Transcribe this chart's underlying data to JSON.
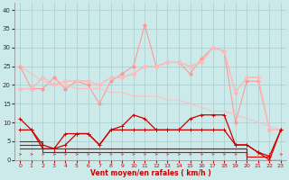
{
  "x": [
    0,
    1,
    2,
    3,
    4,
    5,
    6,
    7,
    8,
    9,
    10,
    11,
    12,
    13,
    14,
    15,
    16,
    17,
    18,
    19,
    20,
    21,
    22,
    23
  ],
  "series": [
    {
      "label": "rafales_high",
      "color": "#ff9999",
      "linewidth": 0.8,
      "marker": "D",
      "markersize": 2.0,
      "y": [
        25,
        19,
        19,
        22,
        19,
        21,
        20,
        15,
        21,
        23,
        25,
        36,
        25,
        26,
        26,
        23,
        27,
        30,
        29,
        10,
        21,
        21,
        8,
        8
      ]
    },
    {
      "label": "rafales_mid1",
      "color": "#ffaaaa",
      "linewidth": 0.8,
      "marker": "D",
      "markersize": 2.0,
      "y": [
        19,
        19,
        22,
        20,
        21,
        21,
        21,
        20,
        22,
        22,
        23,
        25,
        25,
        26,
        26,
        25,
        26,
        30,
        29,
        18,
        22,
        22,
        8,
        8
      ]
    },
    {
      "label": "rafales_mid2",
      "color": "#ffbbbb",
      "linewidth": 0.8,
      "marker": "D",
      "markersize": 2.0,
      "y": [
        19,
        19,
        22,
        20,
        21,
        21,
        21,
        20,
        22,
        22,
        23,
        25,
        25,
        26,
        26,
        25,
        26,
        30,
        29,
        18,
        22,
        22,
        8,
        8
      ]
    },
    {
      "label": "rafales_diag",
      "color": "#ffbbbb",
      "linewidth": 0.7,
      "marker": null,
      "markersize": 0,
      "y": [
        25,
        23,
        21,
        20,
        20,
        19,
        19,
        19,
        18,
        18,
        17,
        17,
        17,
        16,
        16,
        15,
        14,
        13,
        13,
        12,
        11,
        10,
        9,
        8
      ]
    },
    {
      "label": "moyen_high",
      "color": "#cc0000",
      "linewidth": 0.9,
      "marker": "+",
      "markersize": 3,
      "y": [
        11,
        8,
        3,
        3,
        4,
        7,
        7,
        4,
        8,
        9,
        12,
        11,
        8,
        8,
        8,
        11,
        12,
        12,
        12,
        4,
        4,
        2,
        1,
        8
      ]
    },
    {
      "label": "moyen_flat",
      "color": "#cc0000",
      "linewidth": 0.9,
      "marker": "+",
      "markersize": 3,
      "y": [
        8,
        8,
        4,
        3,
        7,
        7,
        7,
        4,
        8,
        8,
        8,
        8,
        8,
        8,
        8,
        8,
        8,
        8,
        8,
        4,
        4,
        2,
        0,
        8
      ]
    },
    {
      "label": "step_high",
      "color": "#dd0000",
      "linewidth": 0.8,
      "marker": null,
      "markersize": 0,
      "step": true,
      "y": [
        5,
        5,
        3,
        2,
        3,
        3,
        3,
        3,
        3,
        3,
        3,
        3,
        3,
        3,
        3,
        3,
        3,
        3,
        3,
        3,
        1,
        1,
        0,
        0
      ]
    },
    {
      "label": "step_low",
      "color": "#dd0000",
      "linewidth": 0.8,
      "marker": null,
      "markersize": 0,
      "step": true,
      "y": [
        3,
        3,
        2,
        2,
        2,
        2,
        2,
        2,
        2,
        2,
        2,
        2,
        2,
        2,
        2,
        2,
        2,
        2,
        2,
        2,
        0,
        0,
        0,
        0
      ]
    },
    {
      "label": "step_mid",
      "color": "#cc0000",
      "linewidth": 0.8,
      "marker": null,
      "markersize": 0,
      "step": true,
      "y": [
        4,
        4,
        3,
        3,
        3,
        3,
        3,
        3,
        3,
        3,
        3,
        3,
        3,
        3,
        3,
        3,
        3,
        3,
        3,
        3,
        0,
        0,
        0,
        0
      ]
    }
  ],
  "xlabel": "Vent moyen/en rafales ( km/h )",
  "ylim": [
    0,
    42
  ],
  "xlim": [
    -0.5,
    23.5
  ],
  "yticks": [
    0,
    5,
    10,
    15,
    20,
    25,
    30,
    35,
    40
  ],
  "xticks": [
    0,
    1,
    2,
    3,
    4,
    5,
    6,
    7,
    8,
    9,
    10,
    11,
    12,
    13,
    14,
    15,
    16,
    17,
    18,
    19,
    20,
    21,
    22,
    23
  ],
  "bg_color": "#cdeaea",
  "grid_color": "#aacccc",
  "arrow_color": "#cc4444"
}
